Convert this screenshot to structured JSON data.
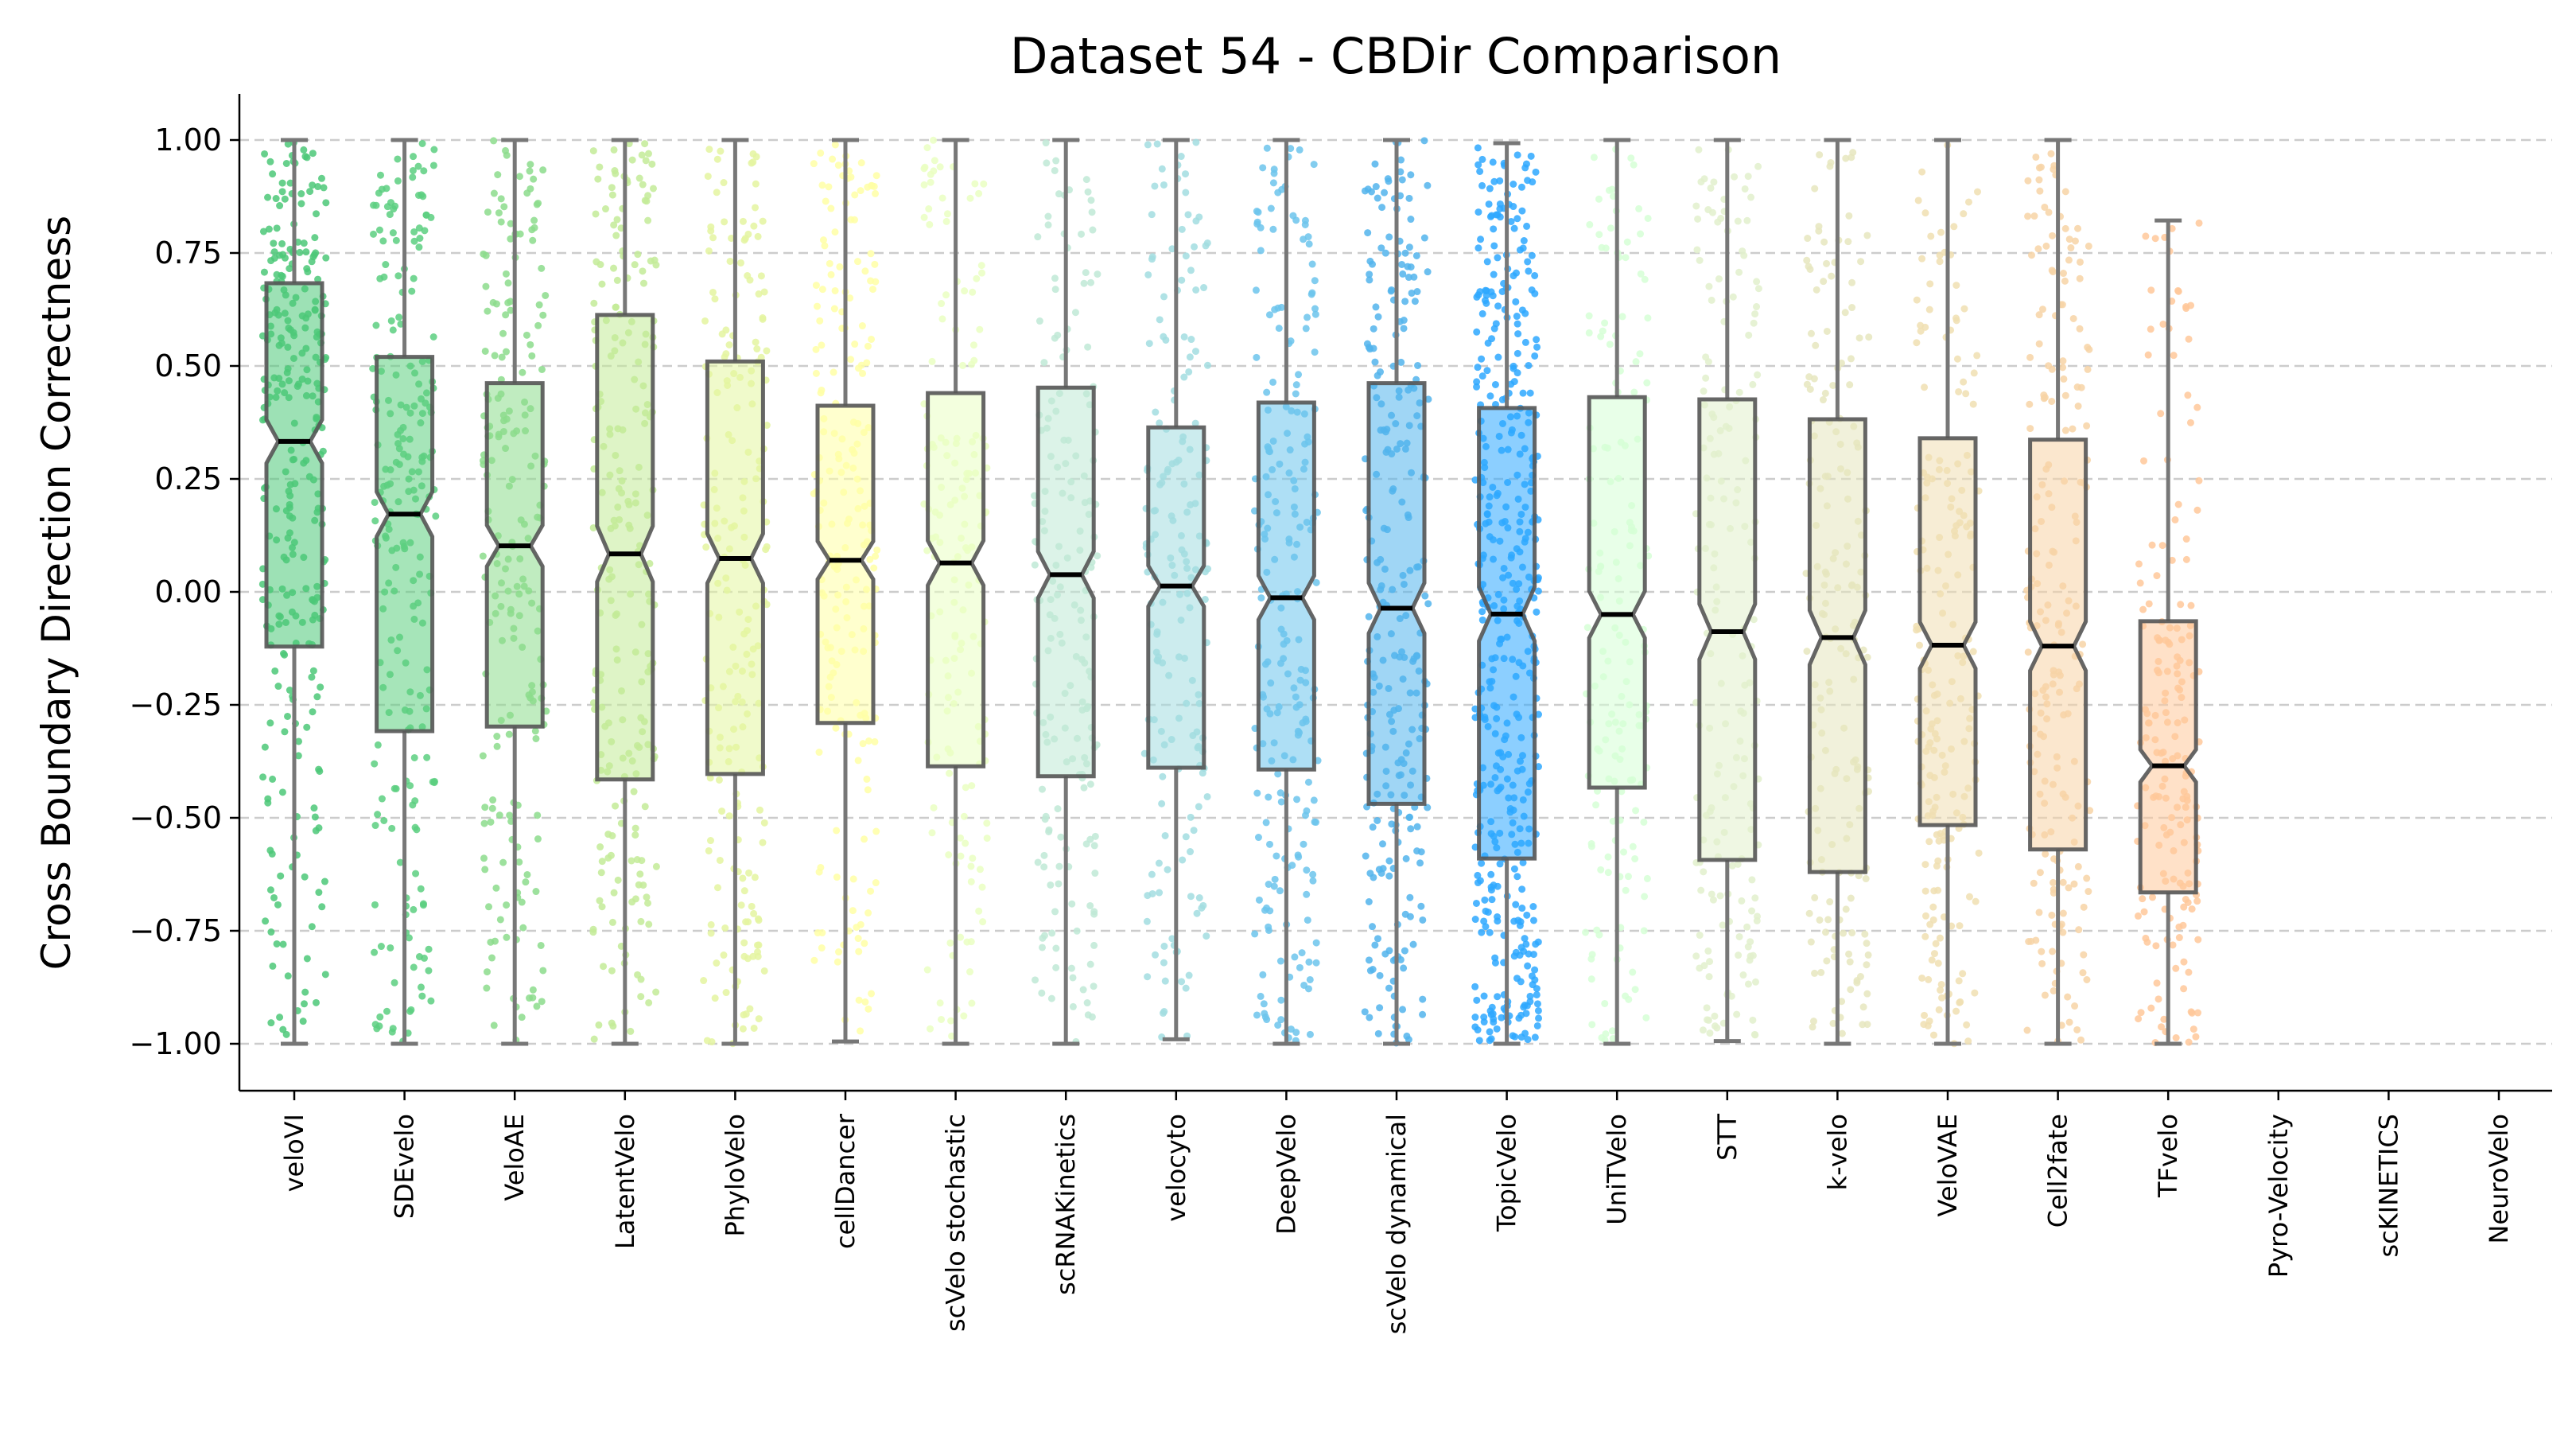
{
  "chart_data": {
    "type": "box",
    "title": "Dataset 54 - CBDir Comparison",
    "xlabel": "",
    "ylabel": "Cross Boundary Direction Correctness",
    "ylim": [
      -1.1,
      1.1
    ],
    "yticks": [
      1.0,
      0.75,
      0.5,
      0.25,
      0.0,
      -0.25,
      -0.5,
      -0.75,
      -1.0
    ],
    "ytick_labels": [
      "1.00",
      "0.75",
      "0.50",
      "0.25",
      "0.00",
      "−0.25",
      "−0.50",
      "−0.75",
      "−1.00"
    ],
    "grid": "horizontal dashed",
    "categories": [
      "veloVI",
      "SDEvelo",
      "VeloAE",
      "LatentVelo",
      "PhyloVelo",
      "cellDancer",
      "scVelo stochastic",
      "scRNAKinetics",
      "velocyto",
      "DeepVelo",
      "scVelo dynamical",
      "TopicVelo",
      "UniTVelo",
      "STT",
      "k-velo",
      "VeloVAE",
      "Cell2fate",
      "TFvelo",
      "Pyro-Velocity",
      "scKINETICS",
      "NeuroVelo"
    ],
    "series": [
      {
        "name": "veloVI",
        "color": "#4cc878",
        "q1": -0.121,
        "median": 0.333,
        "q3": 0.683,
        "whisker_low": -1.0,
        "whisker_high": 1.0,
        "density": 1.3
      },
      {
        "name": "SDEvelo",
        "color": "#5ccf80",
        "q1": -0.308,
        "median": 0.172,
        "q3": 0.52,
        "whisker_low": -1.0,
        "whisker_high": 1.0,
        "density": 1.0
      },
      {
        "name": "VeloAE",
        "color": "#8cdc8c",
        "q1": -0.298,
        "median": 0.102,
        "q3": 0.462,
        "whisker_low": -1.0,
        "whisker_high": 1.0,
        "density": 0.9
      },
      {
        "name": "LatentVelo",
        "color": "#c3eb98",
        "q1": -0.415,
        "median": 0.084,
        "q3": 0.613,
        "whisker_low": -1.0,
        "whisker_high": 1.0,
        "density": 1.0
      },
      {
        "name": "PhyloVelo",
        "color": "#e4f5a0",
        "q1": -0.403,
        "median": 0.074,
        "q3": 0.51,
        "whisker_low": -1.0,
        "whisker_high": 1.0,
        "density": 0.9
      },
      {
        "name": "cellDancer",
        "color": "#ffffa6",
        "q1": -0.29,
        "median": 0.07,
        "q3": 0.412,
        "whisker_low": -0.995,
        "whisker_high": 1.0,
        "density": 0.9
      },
      {
        "name": "scVelo stochastic",
        "color": "#eaffc2",
        "q1": -0.386,
        "median": 0.064,
        "q3": 0.44,
        "whisker_low": -1.0,
        "whisker_high": 1.0,
        "density": 0.7
      },
      {
        "name": "scRNAKinetics",
        "color": "#bfe9d6",
        "q1": -0.408,
        "median": 0.038,
        "q3": 0.452,
        "whisker_low": -1.0,
        "whisker_high": 1.0,
        "density": 0.8
      },
      {
        "name": "velocyto",
        "color": "#a2dde0",
        "q1": -0.389,
        "median": 0.013,
        "q3": 0.364,
        "whisker_low": -0.99,
        "whisker_high": 1.0,
        "density": 0.8
      },
      {
        "name": "DeepVelo",
        "color": "#6cc4ec",
        "q1": -0.393,
        "median": -0.013,
        "q3": 0.419,
        "whisker_low": -1.0,
        "whisker_high": 1.0,
        "density": 1.0
      },
      {
        "name": "scVelo dynamical",
        "color": "#52b4ec",
        "q1": -0.469,
        "median": -0.036,
        "q3": 0.462,
        "whisker_low": -1.0,
        "whisker_high": 1.0,
        "density": 1.2
      },
      {
        "name": "TopicVelo",
        "color": "#2ea8ff",
        "q1": -0.59,
        "median": -0.049,
        "q3": 0.407,
        "whisker_low": -1.0,
        "whisker_high": 0.993,
        "density": 2.0
      },
      {
        "name": "UniTVelo",
        "color": "#d6ffd6",
        "q1": -0.433,
        "median": -0.05,
        "q3": 0.431,
        "whisker_low": -1.0,
        "whisker_high": 1.0,
        "density": 0.7
      },
      {
        "name": "STT",
        "color": "#e2f0cc",
        "q1": -0.593,
        "median": -0.088,
        "q3": 0.426,
        "whisker_low": -0.994,
        "whisker_high": 1.0,
        "density": 0.8
      },
      {
        "name": "k-velo",
        "color": "#e6e6be",
        "q1": -0.62,
        "median": -0.101,
        "q3": 0.382,
        "whisker_low": -1.0,
        "whisker_high": 1.0,
        "density": 0.8
      },
      {
        "name": "VeloVAE",
        "color": "#f0dfb2",
        "q1": -0.516,
        "median": -0.118,
        "q3": 0.34,
        "whisker_low": -1.0,
        "whisker_high": 1.0,
        "density": 0.9
      },
      {
        "name": "Cell2fate",
        "color": "#f7d3a6",
        "q1": -0.57,
        "median": -0.12,
        "q3": 0.337,
        "whisker_low": -1.0,
        "whisker_high": 1.0,
        "density": 0.9
      },
      {
        "name": "TFvelo",
        "color": "#ffc89a",
        "q1": -0.665,
        "median": -0.385,
        "q3": -0.065,
        "whisker_low": -1.0,
        "whisker_high": 0.822,
        "density": 0.8
      },
      {
        "name": "Pyro-Velocity",
        "color": "#cccccc",
        "q1": null,
        "median": null,
        "q3": null,
        "whisker_low": null,
        "whisker_high": null,
        "density": 0
      },
      {
        "name": "scKINETICS",
        "color": "#cccccc",
        "q1": null,
        "median": null,
        "q3": null,
        "whisker_low": null,
        "whisker_high": null,
        "density": 0
      },
      {
        "name": "NeuroVelo",
        "color": "#cccccc",
        "q1": null,
        "median": null,
        "q3": null,
        "whisker_low": null,
        "whisker_high": null,
        "density": 0
      }
    ]
  }
}
